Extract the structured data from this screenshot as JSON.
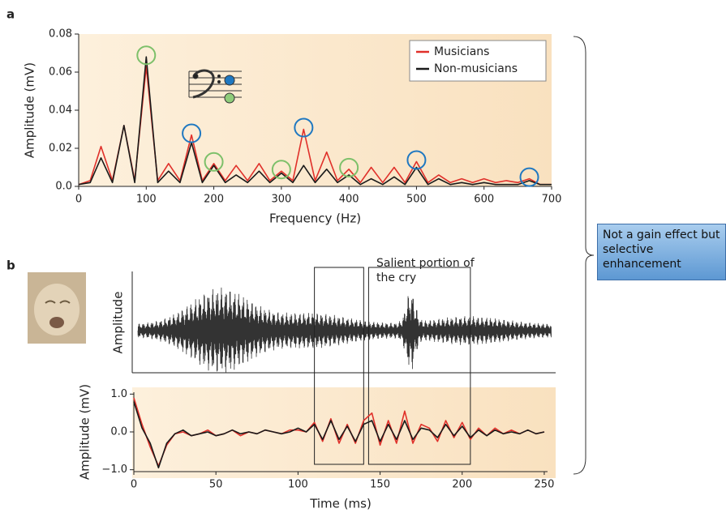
{
  "panel_labels": [
    "a",
    "b"
  ],
  "note": "Not a gain effect but selective enhancement",
  "chart_data": [
    {
      "type": "line",
      "xlabel": "Frequency (Hz)",
      "ylabel": "Amplitude (mV)",
      "xlim": [
        0,
        700
      ],
      "xticks": [
        0,
        100,
        200,
        300,
        400,
        500,
        600,
        700
      ],
      "ylim": [
        0,
        0.08
      ],
      "yticks": [
        {
          "value": 0,
          "label": "0.0"
        },
        0.02,
        0.04,
        0.06,
        0.08
      ],
      "legend": "upper right",
      "x": [
        0,
        17,
        33,
        50,
        67,
        83,
        100,
        117,
        133,
        150,
        167,
        183,
        200,
        217,
        233,
        250,
        267,
        283,
        300,
        317,
        333,
        350,
        367,
        383,
        400,
        417,
        433,
        450,
        467,
        483,
        500,
        517,
        533,
        550,
        567,
        583,
        600,
        617,
        633,
        650,
        667,
        683,
        700
      ],
      "series": [
        {
          "name": "Musicians",
          "color": "#e0302a",
          "values": [
            0.001,
            0.003,
            0.021,
            0.003,
            0.032,
            0.003,
            0.063,
            0.003,
            0.012,
            0.003,
            0.027,
            0.003,
            0.012,
            0.003,
            0.011,
            0.003,
            0.012,
            0.003,
            0.008,
            0.003,
            0.03,
            0.003,
            0.018,
            0.003,
            0.009,
            0.002,
            0.01,
            0.002,
            0.01,
            0.002,
            0.013,
            0.002,
            0.006,
            0.002,
            0.004,
            0.002,
            0.004,
            0.002,
            0.003,
            0.002,
            0.004,
            0.001,
            0.001
          ]
        },
        {
          "name": "Non-musicians",
          "color": "#1a1a1a",
          "values": [
            0.001,
            0.002,
            0.015,
            0.002,
            0.032,
            0.002,
            0.068,
            0.002,
            0.008,
            0.002,
            0.023,
            0.002,
            0.011,
            0.002,
            0.006,
            0.002,
            0.008,
            0.002,
            0.007,
            0.002,
            0.011,
            0.002,
            0.009,
            0.002,
            0.006,
            0.001,
            0.004,
            0.001,
            0.005,
            0.001,
            0.01,
            0.001,
            0.004,
            0.001,
            0.002,
            0.001,
            0.002,
            0.001,
            0.001,
            0.001,
            0.003,
            0.001,
            0.001
          ]
        }
      ],
      "markers": [
        {
          "x": 100,
          "color": "#7dc06a"
        },
        {
          "x": 167,
          "color": "#1f78c1"
        },
        {
          "x": 200,
          "color": "#7dc06a"
        },
        {
          "x": 300,
          "color": "#7dc06a"
        },
        {
          "x": 333,
          "color": "#1f78c1"
        },
        {
          "x": 400,
          "color": "#7dc06a"
        },
        {
          "x": 500,
          "color": "#1f78c1"
        },
        {
          "x": 667,
          "color": "#1f78c1"
        }
      ]
    },
    {
      "type": "line",
      "xlabel": "Time (ms)",
      "ylabel": "Amplitude (mV)",
      "waveform_ylabel": "Amplitude",
      "annotation": "Salient portion of the cry",
      "xlim": [
        0,
        252
      ],
      "xticks": [
        0,
        50,
        100,
        150,
        200,
        250
      ],
      "ylim": [
        -1.05,
        1.05
      ],
      "yticks": [
        {
          "value": 1,
          "label": "1.0"
        },
        {
          "value": 0,
          "label": "0.0"
        },
        {
          "value": -1,
          "label": "−1.0"
        }
      ],
      "boxes": [
        [
          110,
          140
        ],
        [
          143,
          205
        ]
      ],
      "x": [
        0,
        5,
        10,
        15,
        20,
        25,
        30,
        35,
        40,
        45,
        50,
        55,
        60,
        65,
        70,
        75,
        80,
        85,
        90,
        95,
        100,
        105,
        110,
        115,
        120,
        125,
        130,
        135,
        140,
        145,
        150,
        155,
        160,
        165,
        170,
        175,
        180,
        185,
        190,
        195,
        200,
        205,
        210,
        215,
        220,
        225,
        230,
        235,
        240,
        245,
        250
      ],
      "series": [
        {
          "name": "Musicians",
          "color": "#e0302a",
          "values": [
            0.9,
            0.2,
            -0.4,
            -0.9,
            -0.35,
            -0.05,
            0.0,
            -0.1,
            -0.05,
            0.05,
            -0.1,
            -0.05,
            0.05,
            -0.1,
            0.0,
            -0.05,
            0.05,
            0.0,
            -0.05,
            0.05,
            0.05,
            0.0,
            0.25,
            -0.25,
            0.35,
            -0.3,
            0.2,
            -0.3,
            0.3,
            0.5,
            -0.35,
            0.3,
            -0.3,
            0.55,
            -0.3,
            0.2,
            0.1,
            -0.25,
            0.3,
            -0.15,
            0.25,
            -0.2,
            0.1,
            -0.1,
            0.1,
            -0.05,
            0.05,
            -0.05,
            0.05,
            -0.05,
            0.0
          ]
        },
        {
          "name": "Non-musicians",
          "color": "#1a1a1a",
          "values": [
            0.8,
            0.1,
            -0.3,
            -0.95,
            -0.3,
            -0.05,
            0.05,
            -0.1,
            -0.05,
            0.0,
            -0.1,
            -0.05,
            0.05,
            -0.05,
            0.0,
            -0.05,
            0.05,
            0.0,
            -0.05,
            0.0,
            0.1,
            0.0,
            0.2,
            -0.2,
            0.3,
            -0.2,
            0.15,
            -0.25,
            0.2,
            0.3,
            -0.25,
            0.2,
            -0.2,
            0.3,
            -0.2,
            0.1,
            0.05,
            -0.15,
            0.2,
            -0.1,
            0.15,
            -0.15,
            0.05,
            -0.1,
            0.05,
            -0.05,
            0.0,
            -0.05,
            0.05,
            -0.05,
            0.0
          ]
        }
      ]
    }
  ]
}
